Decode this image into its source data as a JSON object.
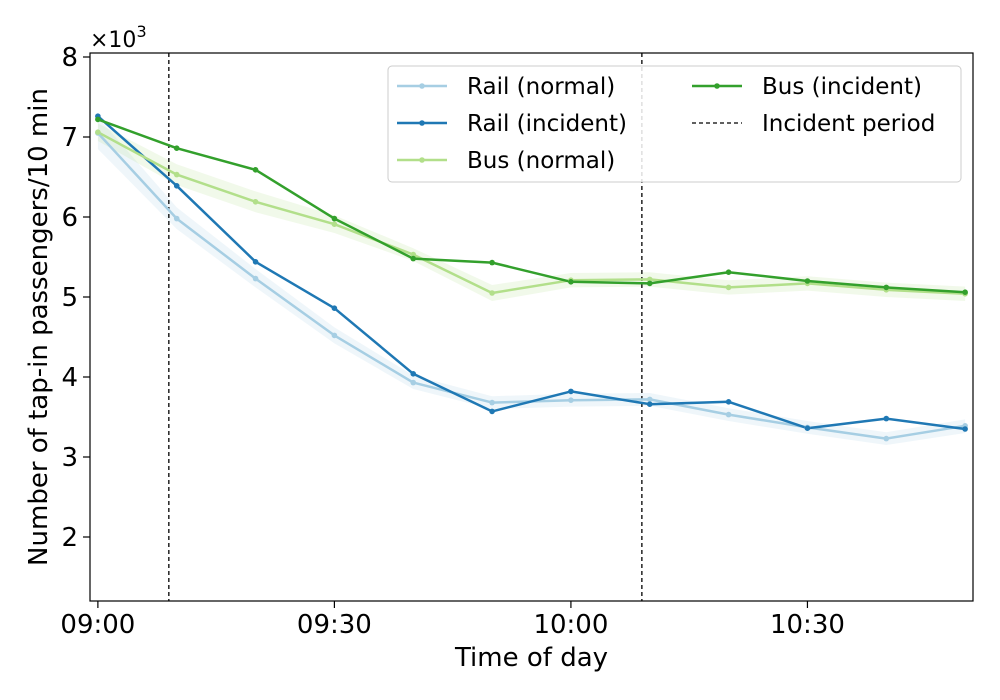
{
  "chart_data": {
    "type": "line",
    "title": "",
    "xlabel": "Time of day",
    "ylabel": "Number of tap-in passengers/10 min",
    "y_multiplier_label": "×10^3",
    "y_multiplier_base": "×10",
    "y_multiplier_exp": "3",
    "x_unit": "minutes after 09:00",
    "xlim": [
      -1,
      111
    ],
    "ylim": [
      1.2,
      8.05
    ],
    "x_ticks": [
      {
        "value": 0,
        "label": "09:00"
      },
      {
        "value": 30,
        "label": "09:30"
      },
      {
        "value": 60,
        "label": "10:00"
      },
      {
        "value": 90,
        "label": "10:30"
      }
    ],
    "y_ticks": [
      {
        "value": 2,
        "label": "2"
      },
      {
        "value": 3,
        "label": "3"
      },
      {
        "value": 4,
        "label": "4"
      },
      {
        "value": 5,
        "label": "5"
      },
      {
        "value": 6,
        "label": "6"
      },
      {
        "value": 7,
        "label": "7"
      },
      {
        "value": 8,
        "label": "8"
      }
    ],
    "incident_period": [
      9,
      69
    ],
    "legend_position": "top-right",
    "grid": false,
    "x": [
      0,
      10,
      20,
      30,
      40,
      50,
      60,
      70,
      80,
      90,
      100,
      110
    ],
    "series": [
      {
        "name": "Rail (normal)",
        "color": "#a6cee3",
        "band": true,
        "values": [
          7.05,
          5.98,
          5.23,
          4.52,
          3.93,
          3.68,
          3.71,
          3.72,
          3.53,
          3.37,
          3.23,
          3.39
        ],
        "lower": [
          6.85,
          5.85,
          5.12,
          4.42,
          3.85,
          3.6,
          3.63,
          3.64,
          3.45,
          3.29,
          3.15,
          3.3
        ],
        "upper": [
          7.25,
          6.12,
          5.35,
          4.62,
          4.02,
          3.76,
          3.79,
          3.8,
          3.61,
          3.45,
          3.31,
          3.47
        ]
      },
      {
        "name": "Rail (incident)",
        "color": "#1f78b4",
        "band": false,
        "values": [
          7.26,
          6.39,
          5.44,
          4.86,
          4.04,
          3.57,
          3.82,
          3.66,
          3.69,
          3.36,
          3.48,
          3.35
        ]
      },
      {
        "name": "Bus (normal)",
        "color": "#b2df8a",
        "band": true,
        "values": [
          7.06,
          6.53,
          6.19,
          5.91,
          5.53,
          5.05,
          5.21,
          5.22,
          5.12,
          5.17,
          5.09,
          5.04
        ],
        "lower": [
          6.95,
          6.4,
          6.06,
          5.8,
          5.45,
          4.95,
          5.12,
          5.13,
          5.03,
          5.08,
          5.0,
          4.95
        ],
        "upper": [
          7.17,
          6.66,
          6.32,
          6.02,
          5.61,
          5.15,
          5.3,
          5.31,
          5.21,
          5.26,
          5.18,
          5.13
        ]
      },
      {
        "name": "Bus (incident)",
        "color": "#33a02c",
        "band": false,
        "values": [
          7.22,
          6.86,
          6.59,
          5.98,
          5.48,
          5.43,
          5.19,
          5.17,
          5.31,
          5.2,
          5.12,
          5.06
        ]
      }
    ],
    "legend": [
      {
        "label": "Rail (normal)",
        "color": "#a6cee3",
        "style": "line-marker"
      },
      {
        "label": "Rail (incident)",
        "color": "#1f78b4",
        "style": "line-marker"
      },
      {
        "label": "Bus (normal)",
        "color": "#b2df8a",
        "style": "line-marker"
      },
      {
        "label": "Bus (incident)",
        "color": "#33a02c",
        "style": "line-marker"
      },
      {
        "label": "Incident period",
        "color": "#000000",
        "style": "dashed"
      }
    ]
  }
}
